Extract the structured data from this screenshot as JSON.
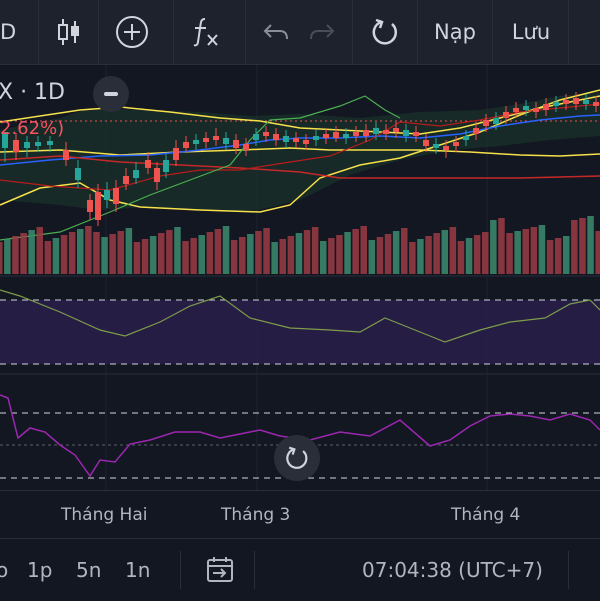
{
  "toolbar": {
    "interval_partial": "D",
    "refresh_label": "Nạp",
    "save_label": "Lưu"
  },
  "chart": {
    "symbol": "X · 1D",
    "change_pct": "2.62%)",
    "time_labels": [
      "Tháng Hai",
      "Tháng 3",
      "Tháng 4"
    ]
  },
  "bottom": {
    "ranges": [
      "o",
      "1p",
      "5n",
      "1n"
    ],
    "clock": "07:04:38 (UTC+7)"
  },
  "colors": {
    "up": "#26a69a",
    "down": "#ef5350",
    "bb_band": "#1b3a2c",
    "rsi_band": "#2a1f4d",
    "yellow": "#f7e14b",
    "green_line": "#4caf50",
    "blue_line": "#2962ff",
    "red_line": "#c62828",
    "purple_line": "#9c27b0"
  },
  "icons": [
    "candles-icon",
    "add-compare-icon",
    "fx-icon",
    "undo-icon",
    "redo-icon",
    "reset-icon",
    "date-range-icon"
  ]
}
